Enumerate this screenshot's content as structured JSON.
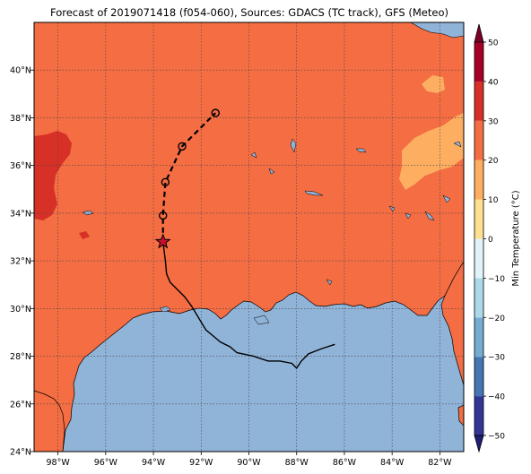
{
  "title": "Forecast of 2019071418 (f054-060), Sources: GDACS (TC track), GFS (Meteo)",
  "map": {
    "lon_range": [
      -99,
      -81
    ],
    "lat_range": [
      24,
      42
    ],
    "x_ticks": [
      {
        "value": -98,
        "label": "98°W"
      },
      {
        "value": -96,
        "label": "96°W"
      },
      {
        "value": -94,
        "label": "94°W"
      },
      {
        "value": -92,
        "label": "92°W"
      },
      {
        "value": -90,
        "label": "90°W"
      },
      {
        "value": -88,
        "label": "88°W"
      },
      {
        "value": -86,
        "label": "86°W"
      },
      {
        "value": -84,
        "label": "84°W"
      },
      {
        "value": -82,
        "label": "82°W"
      }
    ],
    "y_ticks": [
      {
        "value": 24,
        "label": "24°N"
      },
      {
        "value": 26,
        "label": "26°N"
      },
      {
        "value": 28,
        "label": "28°N"
      },
      {
        "value": 30,
        "label": "30°N"
      },
      {
        "value": 32,
        "label": "32°N"
      },
      {
        "value": 34,
        "label": "34°N"
      },
      {
        "value": 36,
        "label": "36°N"
      },
      {
        "value": 38,
        "label": "38°N"
      },
      {
        "value": 40,
        "label": "40°N"
      }
    ],
    "colors": {
      "water": "#90b3d8",
      "land_20_30": "#f46d43",
      "land_30_40": "#d73027",
      "land_10_20": "#fdae61"
    }
  },
  "track": {
    "past": [
      [
        -86.4,
        28.5
      ],
      [
        -87.0,
        28.3
      ],
      [
        -87.5,
        28.1
      ],
      [
        -87.8,
        27.8
      ],
      [
        -88.0,
        27.5
      ],
      [
        -88.2,
        27.7
      ],
      [
        -88.7,
        27.8
      ],
      [
        -89.2,
        27.8
      ],
      [
        -89.8,
        28.0
      ],
      [
        -90.5,
        28.15
      ],
      [
        -90.8,
        28.4
      ],
      [
        -91.2,
        28.6
      ],
      [
        -91.5,
        28.85
      ],
      [
        -91.8,
        29.1
      ],
      [
        -92.1,
        29.6
      ],
      [
        -92.4,
        30.1
      ],
      [
        -92.7,
        30.5
      ],
      [
        -93.1,
        30.9
      ],
      [
        -93.3,
        31.1
      ],
      [
        -93.45,
        31.45
      ],
      [
        -93.5,
        32.0
      ],
      [
        -93.6,
        32.8
      ]
    ],
    "current": [
      -93.6,
      32.8
    ],
    "forecast": [
      [
        -93.6,
        32.8
      ],
      [
        -93.6,
        33.9
      ],
      [
        -93.5,
        35.3
      ],
      [
        -92.8,
        36.8
      ],
      [
        -91.4,
        38.2
      ]
    ],
    "forecast_points": [
      [
        -93.6,
        33.9
      ],
      [
        -93.5,
        35.3
      ],
      [
        -92.8,
        36.8
      ],
      [
        -91.4,
        38.2
      ]
    ]
  },
  "colorbar": {
    "label": "Min Temperature (°C)",
    "min": -50,
    "max": 50,
    "bounds": [
      -50,
      -40,
      -30,
      -20,
      -10,
      0,
      10,
      20,
      30,
      40,
      50
    ],
    "tick_labels": [
      "−50",
      "−40",
      "−30",
      "−20",
      "−10",
      "0",
      "10",
      "20",
      "30",
      "40",
      "50"
    ],
    "colors": [
      "#313695",
      "#4575b4",
      "#74add1",
      "#abd9e9",
      "#e0f3f8",
      "#fee090",
      "#fdae61",
      "#f46d43",
      "#d73027",
      "#a50026"
    ],
    "under_color": "#1e1e73",
    "over_color": "#7f0026"
  }
}
